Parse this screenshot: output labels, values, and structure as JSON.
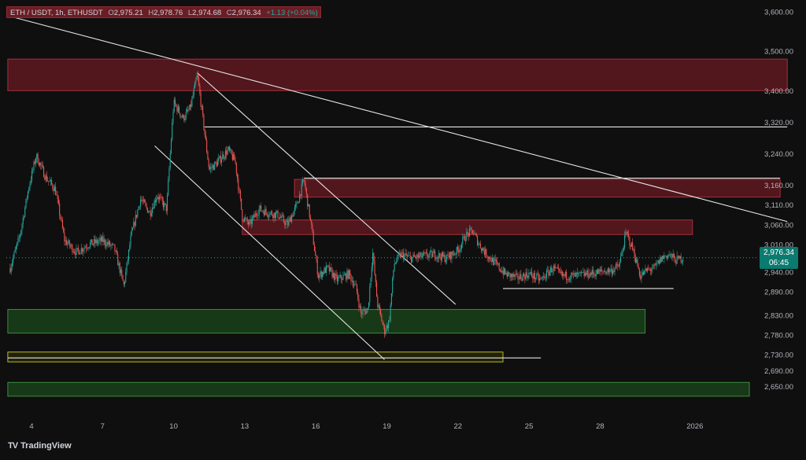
{
  "header": {
    "symbol": "ETH / USDT, 1h, ETHUSDT",
    "o_label": "O",
    "o_value": "2,975.21",
    "h_label": "H",
    "h_value": "2,978.76",
    "l_label": "L",
    "l_value": "2,974.68",
    "c_label": "C",
    "c_value": "2,976.34",
    "change": "+1.13 (+0.04%)"
  },
  "brand": "TradingView",
  "price_tag": {
    "price": "2,976.34",
    "countdown": "06:45"
  },
  "colors": {
    "background": "#0f0f0f",
    "up": "#26a69a",
    "down": "#ef5350",
    "supply_zone": "#8b1e2a",
    "demand_zone": "#1f5c1f",
    "yellow_zone": "#b8b82a",
    "line": "#e6e6e6"
  },
  "chart_data": {
    "type": "candlestick",
    "title": "ETH / USDT, 1h, ETHUSDT",
    "ylim": [
      2600,
      3630
    ],
    "y_ticks": [
      {
        "v": 3600,
        "label": "3,600.00"
      },
      {
        "v": 3500,
        "label": "3,500.00"
      },
      {
        "v": 3400,
        "label": "3,400.00"
      },
      {
        "v": 3320,
        "label": "3,320.00"
      },
      {
        "v": 3240,
        "label": "3,240.00"
      },
      {
        "v": 3160,
        "label": "3,160.00"
      },
      {
        "v": 3110,
        "label": "3,110.00"
      },
      {
        "v": 3060,
        "label": "3,060.00"
      },
      {
        "v": 3010,
        "label": "3,010.00"
      },
      {
        "v": 2940,
        "label": "2,940.00"
      },
      {
        "v": 2890,
        "label": "2,890.00"
      },
      {
        "v": 2830,
        "label": "2,830.00"
      },
      {
        "v": 2780,
        "label": "2,780.00"
      },
      {
        "v": 2730,
        "label": "2,730.00"
      },
      {
        "v": 2690,
        "label": "2,690.00"
      },
      {
        "v": 2650,
        "label": "2,650.00"
      }
    ],
    "x_ticks": [
      {
        "d": 4,
        "label": "4"
      },
      {
        "d": 7,
        "label": "7"
      },
      {
        "d": 10,
        "label": "10"
      },
      {
        "d": 13,
        "label": "13"
      },
      {
        "d": 16,
        "label": "16"
      },
      {
        "d": 19,
        "label": "19"
      },
      {
        "d": 22,
        "label": "22"
      },
      {
        "d": 25,
        "label": "25"
      },
      {
        "d": 28,
        "label": "28"
      },
      {
        "d": 32,
        "label": "2026"
      }
    ],
    "current_price": 2976.34,
    "price_path": [
      {
        "d": 3.1,
        "p": 2950
      },
      {
        "d": 3.5,
        "p": 3030
      },
      {
        "d": 3.9,
        "p": 3160
      },
      {
        "d": 4.2,
        "p": 3235
      },
      {
        "d": 4.6,
        "p": 3180
      },
      {
        "d": 5.0,
        "p": 3150
      },
      {
        "d": 5.4,
        "p": 3020
      },
      {
        "d": 5.9,
        "p": 2990
      },
      {
        "d": 6.4,
        "p": 3010
      },
      {
        "d": 7.0,
        "p": 3020
      },
      {
        "d": 7.5,
        "p": 3000
      },
      {
        "d": 7.9,
        "p": 2905
      },
      {
        "d": 8.2,
        "p": 3030
      },
      {
        "d": 8.6,
        "p": 3125
      },
      {
        "d": 9.0,
        "p": 3090
      },
      {
        "d": 9.3,
        "p": 3135
      },
      {
        "d": 9.7,
        "p": 3100
      },
      {
        "d": 10.0,
        "p": 3370
      },
      {
        "d": 10.4,
        "p": 3330
      },
      {
        "d": 10.7,
        "p": 3355
      },
      {
        "d": 11.0,
        "p": 3440
      },
      {
        "d": 11.2,
        "p": 3345
      },
      {
        "d": 11.5,
        "p": 3200
      },
      {
        "d": 11.8,
        "p": 3215
      },
      {
        "d": 12.3,
        "p": 3250
      },
      {
        "d": 12.6,
        "p": 3220
      },
      {
        "d": 12.9,
        "p": 3080
      },
      {
        "d": 13.2,
        "p": 3060
      },
      {
        "d": 13.6,
        "p": 3100
      },
      {
        "d": 14.0,
        "p": 3090
      },
      {
        "d": 14.4,
        "p": 3085
      },
      {
        "d": 14.8,
        "p": 3060
      },
      {
        "d": 15.2,
        "p": 3110
      },
      {
        "d": 15.5,
        "p": 3175
      },
      {
        "d": 15.8,
        "p": 3060
      },
      {
        "d": 16.1,
        "p": 2930
      },
      {
        "d": 16.5,
        "p": 2950
      },
      {
        "d": 16.9,
        "p": 2920
      },
      {
        "d": 17.4,
        "p": 2935
      },
      {
        "d": 17.7,
        "p": 2900
      },
      {
        "d": 17.9,
        "p": 2835
      },
      {
        "d": 18.2,
        "p": 2845
      },
      {
        "d": 18.4,
        "p": 2990
      },
      {
        "d": 18.6,
        "p": 2860
      },
      {
        "d": 18.9,
        "p": 2790
      },
      {
        "d": 19.1,
        "p": 2815
      },
      {
        "d": 19.3,
        "p": 2960
      },
      {
        "d": 19.6,
        "p": 2985
      },
      {
        "d": 20.0,
        "p": 2975
      },
      {
        "d": 20.5,
        "p": 2980
      },
      {
        "d": 21.0,
        "p": 2985
      },
      {
        "d": 21.5,
        "p": 2975
      },
      {
        "d": 22.0,
        "p": 2995
      },
      {
        "d": 22.3,
        "p": 3030
      },
      {
        "d": 22.6,
        "p": 3045
      },
      {
        "d": 22.9,
        "p": 3010
      },
      {
        "d": 23.2,
        "p": 2985
      },
      {
        "d": 23.6,
        "p": 2960
      },
      {
        "d": 24.0,
        "p": 2935
      },
      {
        "d": 24.5,
        "p": 2925
      },
      {
        "d": 25.0,
        "p": 2935
      },
      {
        "d": 25.5,
        "p": 2920
      },
      {
        "d": 26.0,
        "p": 2950
      },
      {
        "d": 26.4,
        "p": 2930
      },
      {
        "d": 27.0,
        "p": 2930
      },
      {
        "d": 27.5,
        "p": 2935
      },
      {
        "d": 28.0,
        "p": 2940
      },
      {
        "d": 28.5,
        "p": 2945
      },
      {
        "d": 28.8,
        "p": 2955
      },
      {
        "d": 29.1,
        "p": 3040
      },
      {
        "d": 29.4,
        "p": 2995
      },
      {
        "d": 29.7,
        "p": 2930
      },
      {
        "d": 30.0,
        "p": 2945
      },
      {
        "d": 30.3,
        "p": 2950
      },
      {
        "d": 30.6,
        "p": 2975
      },
      {
        "d": 30.9,
        "p": 2985
      },
      {
        "d": 31.2,
        "p": 2970
      },
      {
        "d": 31.5,
        "p": 2976
      }
    ],
    "zones": [
      {
        "kind": "supply",
        "d1": 3.0,
        "d2": 35.9,
        "p1": 3400,
        "p2": 3480
      },
      {
        "kind": "supply",
        "d1": 15.1,
        "d2": 35.6,
        "p1": 3130,
        "p2": 3175
      },
      {
        "kind": "supply",
        "d1": 12.9,
        "d2": 31.9,
        "p1": 3035,
        "p2": 3072
      },
      {
        "kind": "demand",
        "d1": 3.0,
        "d2": 29.9,
        "p1": 2785,
        "p2": 2845
      },
      {
        "kind": "yellow",
        "d1": 3.0,
        "d2": 23.9,
        "p1": 2712,
        "p2": 2737
      },
      {
        "kind": "demand",
        "d1": 3.0,
        "d2": 34.3,
        "p1": 2625,
        "p2": 2660
      }
    ],
    "lines": [
      {
        "d1": 3.0,
        "p1": 3590,
        "d2": 35.9,
        "p2": 3068
      },
      {
        "d1": 11.0,
        "p1": 3445,
        "d2": 21.9,
        "p2": 2858
      },
      {
        "d1": 9.2,
        "p1": 3260,
        "d2": 18.9,
        "p2": 2718
      },
      {
        "d1": 11.3,
        "p1": 3308,
        "d2": 35.9,
        "p2": 3308
      },
      {
        "d1": 15.5,
        "p1": 3178,
        "d2": 35.6,
        "p2": 3178
      },
      {
        "d1": 3.0,
        "p1": 2722,
        "d2": 25.5,
        "p2": 2722
      },
      {
        "d1": 23.9,
        "p1": 2898,
        "d2": 31.1,
        "p2": 2898
      }
    ]
  }
}
